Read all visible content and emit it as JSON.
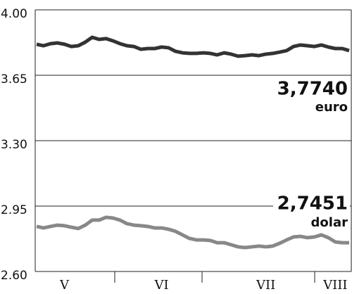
{
  "chart_data": {
    "type": "line",
    "categories": [
      null,
      null,
      null,
      null,
      "V",
      null,
      null,
      null,
      null,
      null,
      null,
      null,
      null,
      null,
      null,
      null,
      null,
      null,
      "VI",
      null,
      null,
      null,
      null,
      null,
      null,
      null,
      null,
      null,
      null,
      null,
      null,
      null,
      null,
      "VII",
      null,
      null,
      null,
      null,
      null,
      null,
      null,
      null,
      null,
      "VIII",
      null,
      null
    ],
    "series": [
      {
        "name": "euro",
        "annotation": "3,7740",
        "color": "#333333",
        "values": [
          3.816,
          3.808,
          3.819,
          3.823,
          3.816,
          3.804,
          3.808,
          3.827,
          3.853,
          3.842,
          3.846,
          3.834,
          3.819,
          3.808,
          3.804,
          3.789,
          3.793,
          3.793,
          3.801,
          3.797,
          3.778,
          3.77,
          3.767,
          3.767,
          3.77,
          3.767,
          3.759,
          3.77,
          3.763,
          3.752,
          3.755,
          3.759,
          3.755,
          3.763,
          3.767,
          3.774,
          3.782,
          3.804,
          3.812,
          3.808,
          3.804,
          3.812,
          3.801,
          3.793,
          3.793,
          3.782
        ]
      },
      {
        "name": "dolar",
        "annotation": "2,7451",
        "color": "#888888",
        "values": [
          2.841,
          2.833,
          2.841,
          2.848,
          2.845,
          2.837,
          2.83,
          2.848,
          2.875,
          2.875,
          2.89,
          2.886,
          2.875,
          2.856,
          2.848,
          2.845,
          2.841,
          2.833,
          2.833,
          2.826,
          2.815,
          2.796,
          2.777,
          2.769,
          2.769,
          2.766,
          2.754,
          2.754,
          2.743,
          2.732,
          2.728,
          2.732,
          2.736,
          2.732,
          2.736,
          2.751,
          2.769,
          2.785,
          2.788,
          2.781,
          2.785,
          2.796,
          2.781,
          2.758,
          2.754,
          2.754
        ]
      }
    ],
    "ylim": [
      2.6,
      4.0
    ],
    "yticks": [
      {
        "value": 2.6,
        "label": "2.60"
      },
      2.95,
      {
        "value": 3.3,
        "label": "3.30"
      },
      3.65,
      {
        "value": 4.0,
        "label": "4.00"
      }
    ],
    "grid": true
  }
}
